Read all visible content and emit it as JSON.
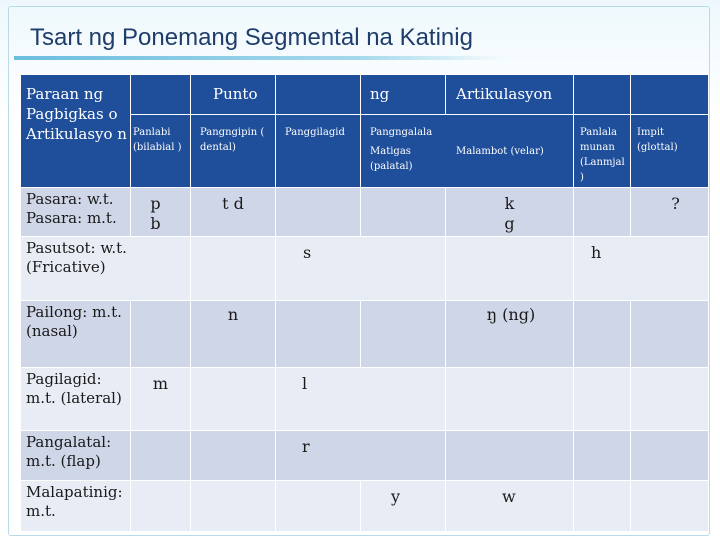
{
  "slide": {
    "title": "Tsart ng Ponemang Segmental na Katinig"
  },
  "header": {
    "manner_heading": "Paraan ng Pagbigkas o Artikulasyo n",
    "place_heading_1": "Punto",
    "place_heading_2": "ng",
    "place_heading_3": "Artikulasyon",
    "places": {
      "bilabial": "Panlabi (bilabial )",
      "dental": "Pangngipin ( dental)",
      "alveolar": "Panggilagid",
      "palatal_group": "Pangngalala",
      "palatal": "Matigas (palatal)",
      "velar": "Malambot (velar)",
      "pharyngeal": "Panlala munan (Lanmjal )",
      "glottal": "Impit (glottal)"
    }
  },
  "rows": [
    {
      "label": "Pasara: w.t. Pasara: m.t.",
      "bilabial": "p b",
      "dental": "t d",
      "velar": "k g",
      "glottal": "?"
    },
    {
      "label": "Pasutsot: w.t. (Fricative)",
      "alveolar": "s",
      "glottal": "h"
    },
    {
      "label": "Pailong: m.t. (nasal)",
      "dental": "n",
      "velar": "ŋ (ng)"
    },
    {
      "label": "Pagilagid: m.t. (lateral)",
      "bilabial": "m",
      "alveolar": "l"
    },
    {
      "label": "Pangalatal: m.t. (flap)",
      "alveolar": "r"
    },
    {
      "label": "Malapatinig: m.t.",
      "palatal": "y",
      "velar": "w"
    }
  ],
  "colors": {
    "header_bg": "#1f4e9a",
    "band_dark": "#cfd6e8",
    "band_light": "#e8ecf5",
    "title": "#1f3d6b"
  }
}
